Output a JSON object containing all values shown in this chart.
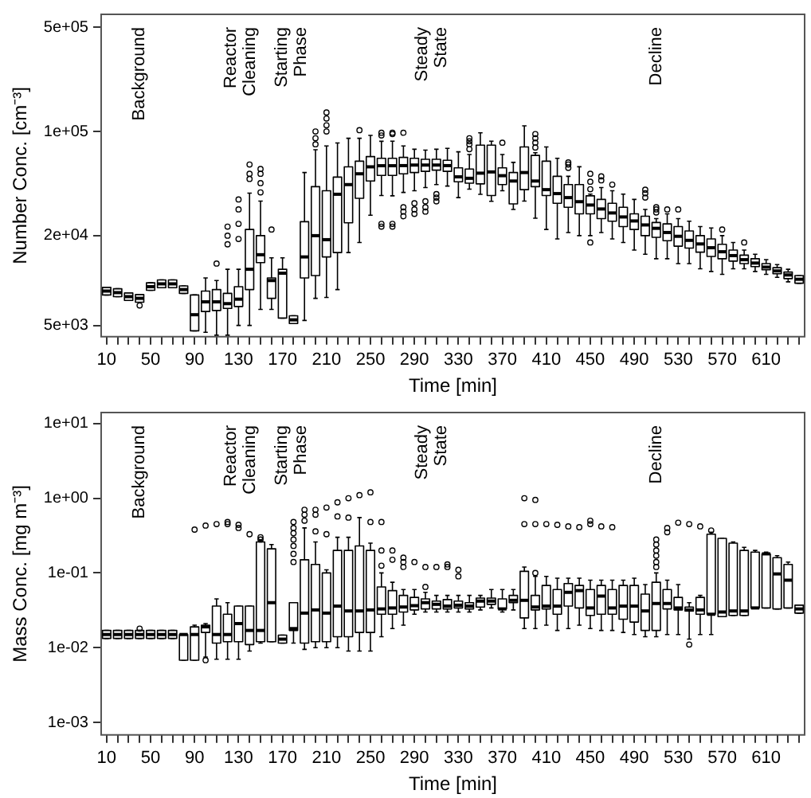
{
  "chart_data": [
    {
      "type": "box",
      "xlabel": "Time [min]",
      "ylabel": "Number Conc. [cm⁻³]",
      "log": true,
      "ylim": [
        4200,
        610000
      ],
      "yticks": [
        {
          "value": 5000,
          "label": "5e+03"
        },
        {
          "value": 20000,
          "label": "2e+04"
        },
        {
          "value": 100000,
          "label": "1e+05"
        },
        {
          "value": 500000,
          "label": "5e+05"
        }
      ],
      "annotations": [
        "Background",
        "Reactor Cleaning",
        "Starting Phase",
        "Steady State",
        "Decline"
      ],
      "categories": [
        "10",
        null,
        null,
        null,
        "50",
        null,
        null,
        null,
        "90",
        null,
        null,
        null,
        "130",
        null,
        null,
        null,
        "170",
        null,
        null,
        null,
        "210",
        null,
        null,
        null,
        "250",
        null,
        null,
        null,
        "290",
        null,
        null,
        null,
        "330",
        null,
        null,
        null,
        "370",
        null,
        null,
        null,
        "410",
        null,
        null,
        null,
        "450",
        null,
        null,
        null,
        "490",
        null,
        null,
        null,
        "530",
        null,
        null,
        null,
        "570",
        null,
        null,
        null,
        "610",
        null,
        null,
        null
      ],
      "boxes": [
        {
          "low": 8000,
          "q1": 8000,
          "median": 8500,
          "q3": 9000,
          "high": 9000
        },
        {
          "low": 7800,
          "q1": 7800,
          "median": 8300,
          "q3": 8800,
          "high": 8800
        },
        {
          "low": 7350,
          "q1": 7350,
          "median": 7800,
          "q3": 8250,
          "high": 8250
        },
        {
          "low": 7150,
          "q1": 7150,
          "median": 7600,
          "q3": 8050,
          "high": 8050,
          "outliers": [
            6800
          ]
        },
        {
          "low": 8600,
          "q1": 8600,
          "median": 9100,
          "q3": 9650,
          "high": 9650
        },
        {
          "low": 8950,
          "q1": 8950,
          "median": 9500,
          "q3": 10100,
          "high": 10100
        },
        {
          "low": 8950,
          "q1": 8950,
          "median": 9500,
          "q3": 10100,
          "high": 10100
        },
        {
          "low": 8200,
          "q1": 8200,
          "median": 8700,
          "q3": 9200,
          "high": 9200
        },
        {
          "low": 4600,
          "q1": 4600,
          "median": 5900,
          "q3": 8000,
          "high": 8000
        },
        {
          "low": 4500,
          "q1": 6200,
          "median": 7200,
          "q3": 8500,
          "high": 10400
        },
        {
          "low": 4300,
          "q1": 6300,
          "median": 7200,
          "q3": 8700,
          "high": 10000,
          "outliers": [
            13000
          ]
        },
        {
          "low": 4300,
          "q1": 6500,
          "median": 7000,
          "q3": 8200,
          "high": 11900,
          "outliers": [
            17500,
            20000,
            23000
          ]
        },
        {
          "low": 5000,
          "q1": 6700,
          "median": 7500,
          "q3": 9100,
          "high": 11900,
          "outliers": [
            19000,
            24000,
            30000,
            35000
          ]
        },
        {
          "low": 5000,
          "q1": 8700,
          "median": 11900,
          "q3": 22000,
          "high": 38600,
          "outliers": [
            48000,
            52000,
            60000
          ]
        },
        {
          "low": 6400,
          "q1": 13200,
          "median": 14900,
          "q3": 20000,
          "high": 34100,
          "outliers": [
            39000,
            45000,
            52000,
            56000
          ]
        },
        {
          "low": 6400,
          "q1": 7600,
          "median": 10000,
          "q3": 10400,
          "high": 14200,
          "outliers": [
            22000
          ]
        },
        {
          "low": 5600,
          "q1": 5600,
          "median": 11200,
          "q3": 11900,
          "high": 14200
        },
        {
          "low": 5150,
          "q1": 5150,
          "median": 5450,
          "q3": 5800,
          "high": 5800
        },
        {
          "low": 5400,
          "q1": 10400,
          "median": 14400,
          "q3": 24800,
          "high": 53000
        },
        {
          "low": 7600,
          "q1": 10800,
          "median": 20000,
          "q3": 42600,
          "high": 75400,
          "outliers": [
            82000,
            90000,
            100000
          ]
        },
        {
          "low": 7700,
          "q1": 14400,
          "median": 18800,
          "q3": 40000,
          "high": 80000,
          "outliers": [
            100000,
            110000,
            122000,
            134000
          ]
        },
        {
          "low": 8700,
          "q1": 15400,
          "median": 37900,
          "q3": 49400,
          "high": 83700
        },
        {
          "low": 15400,
          "q1": 24400,
          "median": 44000,
          "q3": 57900,
          "high": 90000
        },
        {
          "low": 18000,
          "q1": 35600,
          "median": 52000,
          "q3": 63200,
          "high": 90000,
          "outliers": [
            102000
          ]
        },
        {
          "low": 27400,
          "q1": 46500,
          "median": 57900,
          "q3": 67800,
          "high": 94000
        },
        {
          "low": 37200,
          "q1": 50700,
          "median": 58900,
          "q3": 66100,
          "high": 85900,
          "outliers": [
            23000,
            24000,
            94000,
            98000
          ]
        },
        {
          "low": 37000,
          "q1": 50700,
          "median": 58900,
          "q3": 66100,
          "high": 86000,
          "outliers": [
            23000,
            24000,
            96000,
            98000
          ]
        },
        {
          "low": 39000,
          "q1": 52000,
          "median": 59000,
          "q3": 67000,
          "high": 80000,
          "outliers": [
            27000,
            29000,
            31000,
            98000
          ]
        },
        {
          "low": 40000,
          "q1": 53000,
          "median": 59500,
          "q3": 66000,
          "high": 76000,
          "outliers": [
            28000,
            30000,
            33000
          ]
        },
        {
          "low": 42000,
          "q1": 54000,
          "median": 59500,
          "q3": 65000,
          "high": 75000,
          "outliers": [
            29000,
            31000,
            34000
          ]
        },
        {
          "low": 44000,
          "q1": 55000,
          "median": 59500,
          "q3": 65000,
          "high": 76000,
          "outliers": [
            34000,
            36000,
            38000
          ]
        },
        {
          "low": 43000,
          "q1": 54000,
          "median": 59000,
          "q3": 64000,
          "high": 77000
        },
        {
          "low": 36000,
          "q1": 46000,
          "median": 49600,
          "q3": 57000,
          "high": 73000
        },
        {
          "low": 41000,
          "q1": 45000,
          "median": 48500,
          "q3": 56000,
          "high": 70000,
          "outliers": [
            76000,
            82000,
            86000,
            90000
          ]
        },
        {
          "low": 37900,
          "q1": 44500,
          "median": 52500,
          "q3": 80900,
          "high": 98000
        },
        {
          "low": 34000,
          "q1": 37200,
          "median": 53500,
          "q3": 80900,
          "high": 86000
        },
        {
          "low": 40000,
          "q1": 44000,
          "median": 50500,
          "q3": 57000,
          "high": 70000,
          "outliers": [
            84000
          ]
        },
        {
          "low": 30000,
          "q1": 32700,
          "median": 46500,
          "q3": 53000,
          "high": 62000
        },
        {
          "low": 34100,
          "q1": 40700,
          "median": 53000,
          "q3": 78700,
          "high": 109000
        },
        {
          "low": 26200,
          "q1": 42600,
          "median": 46500,
          "q3": 69100,
          "high": 72000,
          "outliers": [
            78000,
            84000,
            90000,
            96000
          ]
        },
        {
          "low": 22000,
          "q1": 37200,
          "median": 40700,
          "q3": 63200,
          "high": 78700
        },
        {
          "low": 19000,
          "q1": 33000,
          "median": 38300,
          "q3": 50000,
          "high": 66000
        },
        {
          "low": 21000,
          "q1": 31000,
          "median": 36000,
          "q3": 44000,
          "high": 50000,
          "outliers": [
            57000,
            60000,
            62000
          ]
        },
        {
          "low": 20000,
          "q1": 28000,
          "median": 33800,
          "q3": 44000,
          "high": 58000
        },
        {
          "low": 20000,
          "q1": 28000,
          "median": 32100,
          "q3": 37000,
          "high": 38000,
          "outliers": [
            18000,
            41000,
            46000,
            52000
          ]
        },
        {
          "low": 21000,
          "q1": 26000,
          "median": 30200,
          "q3": 35000,
          "high": 42000,
          "outliers": [
            47000,
            50000
          ]
        },
        {
          "low": 19000,
          "q1": 25000,
          "median": 28400,
          "q3": 33000,
          "high": 40000,
          "outliers": [
            44000
          ]
        },
        {
          "low": 18000,
          "q1": 23000,
          "median": 26700,
          "q3": 31000,
          "high": 38000
        },
        {
          "low": 16000,
          "q1": 22000,
          "median": 25100,
          "q3": 28000,
          "high": 35000
        },
        {
          "low": 15000,
          "q1": 20000,
          "median": 23600,
          "q3": 27000,
          "high": 30000,
          "outliers": [
            36000,
            38500,
            40700
          ]
        },
        {
          "low": 14000,
          "q1": 19500,
          "median": 22400,
          "q3": 24500,
          "high": 26000,
          "outliers": [
            28600,
            30000,
            31000
          ]
        },
        {
          "low": 14000,
          "q1": 18500,
          "median": 21000,
          "q3": 24000,
          "high": 28000,
          "outliers": [
            30000
          ]
        },
        {
          "low": 13000,
          "q1": 17000,
          "median": 19800,
          "q3": 23000,
          "high": 26000,
          "outliers": [
            30000
          ]
        },
        {
          "low": 13000,
          "q1": 16500,
          "median": 18600,
          "q3": 21500,
          "high": 25000
        },
        {
          "low": 12000,
          "q1": 15500,
          "median": 17600,
          "q3": 20000,
          "high": 23000
        },
        {
          "low": 11500,
          "q1": 14500,
          "median": 16600,
          "q3": 19000,
          "high": 22500
        },
        {
          "low": 11000,
          "q1": 14000,
          "median": 15600,
          "q3": 17500,
          "high": 20000,
          "outliers": [
            22000
          ]
        },
        {
          "low": 12000,
          "q1": 13500,
          "median": 14700,
          "q3": 16000,
          "high": 18000
        },
        {
          "low": 12000,
          "q1": 13000,
          "median": 13800,
          "q3": 14800,
          "high": 16000,
          "outliers": [
            18000
          ]
        },
        {
          "low": 11500,
          "q1": 12400,
          "median": 13100,
          "q3": 14000,
          "high": 15000
        },
        {
          "low": 11000,
          "q1": 11800,
          "median": 12300,
          "q3": 13000,
          "high": 13800
        },
        {
          "low": 10500,
          "q1": 11100,
          "median": 11600,
          "q3": 12200,
          "high": 12800
        },
        {
          "low": 9800,
          "q1": 10300,
          "median": 10900,
          "q3": 11400,
          "high": 11900
        },
        {
          "low": 9600,
          "q1": 9600,
          "median": 10200,
          "q3": 10800,
          "high": 10800
        }
      ]
    },
    {
      "type": "box",
      "xlabel": "Time [min]",
      "ylabel": "Mass Conc. [mg m⁻³]",
      "log": true,
      "ylim": [
        0.00068,
        14
      ],
      "yticks": [
        {
          "value": 0.001,
          "label": "1e-03"
        },
        {
          "value": 0.01,
          "label": "1e-02"
        },
        {
          "value": 0.1,
          "label": "1e-01"
        },
        {
          "value": 1,
          "label": "1e+00"
        },
        {
          "value": 10,
          "label": "1e+01"
        }
      ],
      "annotations": [
        "Background",
        "Reactor Cleaning",
        "Starting Phase",
        "Steady State",
        "Decline"
      ],
      "categories": [
        "10",
        null,
        null,
        null,
        "50",
        null,
        null,
        null,
        "90",
        null,
        null,
        null,
        "130",
        null,
        null,
        null,
        "170",
        null,
        null,
        null,
        "210",
        null,
        null,
        null,
        "250",
        null,
        null,
        null,
        "290",
        null,
        null,
        null,
        "330",
        null,
        null,
        null,
        "370",
        null,
        null,
        null,
        "410",
        null,
        null,
        null,
        "450",
        null,
        null,
        null,
        "490",
        null,
        null,
        null,
        "530",
        null,
        null,
        null,
        "570",
        null,
        null,
        null,
        "610",
        null,
        null,
        null
      ],
      "boxes": [
        {
          "low": 0.0133,
          "q1": 0.0133,
          "median": 0.015,
          "q3": 0.017,
          "high": 0.017
        },
        {
          "low": 0.0133,
          "q1": 0.0133,
          "median": 0.015,
          "q3": 0.017,
          "high": 0.017
        },
        {
          "low": 0.0133,
          "q1": 0.0133,
          "median": 0.015,
          "q3": 0.017,
          "high": 0.017
        },
        {
          "low": 0.0133,
          "q1": 0.0133,
          "median": 0.015,
          "q3": 0.017,
          "high": 0.017,
          "outliers": [
            0.018
          ]
        },
        {
          "low": 0.0133,
          "q1": 0.0133,
          "median": 0.015,
          "q3": 0.017,
          "high": 0.017
        },
        {
          "low": 0.0133,
          "q1": 0.0133,
          "median": 0.015,
          "q3": 0.017,
          "high": 0.017
        },
        {
          "low": 0.0133,
          "q1": 0.0133,
          "median": 0.015,
          "q3": 0.017,
          "high": 0.017
        },
        {
          "low": 0.0068,
          "q1": 0.0068,
          "median": 0.015,
          "q3": 0.015,
          "high": 0.015
        },
        {
          "low": 0.0068,
          "q1": 0.0068,
          "median": 0.015,
          "q3": 0.019,
          "high": 0.02,
          "outliers": [
            0.38
          ]
        },
        {
          "low": 0.0075,
          "q1": 0.016,
          "median": 0.019,
          "q3": 0.02,
          "high": 0.021,
          "outliers": [
            0.0068,
            0.43
          ]
        },
        {
          "low": 0.007,
          "q1": 0.0115,
          "median": 0.015,
          "q3": 0.036,
          "high": 0.045,
          "outliers": [
            0.45
          ]
        },
        {
          "low": 0.007,
          "q1": 0.012,
          "median": 0.015,
          "q3": 0.028,
          "high": 0.04,
          "outliers": [
            0.45,
            0.48
          ]
        },
        {
          "low": 0.007,
          "q1": 0.012,
          "median": 0.021,
          "q3": 0.036,
          "high": 0.036,
          "outliers": [
            0.4,
            0.44
          ]
        },
        {
          "low": 0.009,
          "q1": 0.011,
          "median": 0.017,
          "q3": 0.036,
          "high": 0.036,
          "outliers": [
            0.33
          ]
        },
        {
          "low": 0.0115,
          "q1": 0.012,
          "median": 0.017,
          "q3": 0.26,
          "high": 0.27,
          "outliers": [
            0.28,
            0.3
          ]
        },
        {
          "low": 0.012,
          "q1": 0.012,
          "median": 0.04,
          "q3": 0.21,
          "high": 0.24
        },
        {
          "low": 0.0115,
          "q1": 0.0115,
          "median": 0.013,
          "q3": 0.0147,
          "high": 0.0147
        },
        {
          "low": 0.0115,
          "q1": 0.017,
          "median": 0.018,
          "q3": 0.04,
          "high": 0.04,
          "outliers": [
            0.14,
            0.18,
            0.23,
            0.28,
            0.34,
            0.4,
            0.48
          ]
        },
        {
          "low": 0.0095,
          "q1": 0.0115,
          "median": 0.029,
          "q3": 0.15,
          "high": 0.4,
          "outliers": [
            0.5,
            0.6,
            0.7
          ]
        },
        {
          "low": 0.01,
          "q1": 0.012,
          "median": 0.032,
          "q3": 0.13,
          "high": 0.26,
          "outliers": [
            0.36,
            0.6,
            0.7
          ]
        },
        {
          "low": 0.01,
          "q1": 0.012,
          "median": 0.029,
          "q3": 0.1,
          "high": 0.11,
          "outliers": [
            0.33,
            0.75
          ]
        },
        {
          "low": 0.01,
          "q1": 0.014,
          "median": 0.036,
          "q3": 0.2,
          "high": 0.3,
          "outliers": [
            0.57,
            0.88
          ]
        },
        {
          "low": 0.009,
          "q1": 0.014,
          "median": 0.031,
          "q3": 0.2,
          "high": 0.3,
          "outliers": [
            0.55,
            1.0
          ]
        },
        {
          "low": 0.009,
          "q1": 0.016,
          "median": 0.031,
          "q3": 0.23,
          "high": 0.55,
          "outliers": [
            1.1
          ]
        },
        {
          "low": 0.009,
          "q1": 0.016,
          "median": 0.032,
          "q3": 0.2,
          "high": 0.25,
          "outliers": [
            0.48,
            1.2
          ]
        },
        {
          "low": 0.014,
          "q1": 0.028,
          "median": 0.033,
          "q3": 0.065,
          "high": 0.1,
          "outliers": [
            0.125,
            0.2,
            0.48
          ]
        },
        {
          "low": 0.018,
          "q1": 0.028,
          "median": 0.034,
          "q3": 0.058,
          "high": 0.075,
          "outliers": [
            0.15,
            0.2
          ]
        },
        {
          "low": 0.02,
          "q1": 0.03,
          "median": 0.035,
          "q3": 0.05,
          "high": 0.06,
          "outliers": [
            0.12,
            0.14,
            0.16
          ]
        },
        {
          "low": 0.028,
          "q1": 0.032,
          "median": 0.0365,
          "q3": 0.047,
          "high": 0.06,
          "outliers": [
            0.14
          ]
        },
        {
          "low": 0.03,
          "q1": 0.033,
          "median": 0.04,
          "q3": 0.045,
          "high": 0.055,
          "outliers": [
            0.065,
            0.12
          ]
        },
        {
          "low": 0.03,
          "q1": 0.033,
          "median": 0.038,
          "q3": 0.042,
          "high": 0.05,
          "outliers": [
            0.12
          ]
        },
        {
          "low": 0.03,
          "q1": 0.033,
          "median": 0.036,
          "q3": 0.044,
          "high": 0.05,
          "outliers": [
            0.12,
            0.13
          ]
        },
        {
          "low": 0.03,
          "q1": 0.034,
          "median": 0.037,
          "q3": 0.042,
          "high": 0.05,
          "outliers": [
            0.09,
            0.11
          ]
        },
        {
          "low": 0.03,
          "q1": 0.033,
          "median": 0.036,
          "q3": 0.04,
          "high": 0.05
        },
        {
          "low": 0.032,
          "q1": 0.035,
          "median": 0.042,
          "q3": 0.046,
          "high": 0.05
        },
        {
          "low": 0.034,
          "q1": 0.038,
          "median": 0.042,
          "q3": 0.046,
          "high": 0.06
        },
        {
          "low": 0.03,
          "q1": 0.033,
          "median": 0.033,
          "q3": 0.045,
          "high": 0.06
        },
        {
          "low": 0.032,
          "q1": 0.04,
          "median": 0.043,
          "q3": 0.05,
          "high": 0.06
        },
        {
          "low": 0.018,
          "q1": 0.025,
          "median": 0.043,
          "q3": 0.105,
          "high": 0.12,
          "outliers": [
            0.45,
            1.0
          ]
        },
        {
          "low": 0.018,
          "q1": 0.032,
          "median": 0.035,
          "q3": 0.05,
          "high": 0.09,
          "outliers": [
            0.1,
            0.45,
            0.95
          ]
        },
        {
          "low": 0.02,
          "q1": 0.033,
          "median": 0.036,
          "q3": 0.068,
          "high": 0.09,
          "outliers": [
            0.45
          ]
        },
        {
          "low": 0.017,
          "q1": 0.028,
          "median": 0.036,
          "q3": 0.06,
          "high": 0.085,
          "outliers": [
            0.44
          ]
        },
        {
          "low": 0.018,
          "q1": 0.036,
          "median": 0.055,
          "q3": 0.072,
          "high": 0.085,
          "outliers": [
            0.42
          ]
        },
        {
          "low": 0.02,
          "q1": 0.034,
          "median": 0.058,
          "q3": 0.068,
          "high": 0.085,
          "outliers": [
            0.41
          ]
        },
        {
          "low": 0.018,
          "q1": 0.027,
          "median": 0.034,
          "q3": 0.06,
          "high": 0.08,
          "outliers": [
            0.45,
            0.5
          ]
        },
        {
          "low": 0.017,
          "q1": 0.028,
          "median": 0.049,
          "q3": 0.068,
          "high": 0.08,
          "outliers": [
            0.42
          ]
        },
        {
          "low": 0.017,
          "q1": 0.028,
          "median": 0.034,
          "q3": 0.06,
          "high": 0.08,
          "outliers": [
            0.41
          ]
        },
        {
          "low": 0.016,
          "q1": 0.024,
          "median": 0.036,
          "q3": 0.068,
          "high": 0.08
        },
        {
          "low": 0.015,
          "q1": 0.022,
          "median": 0.036,
          "q3": 0.068,
          "high": 0.085
        },
        {
          "low": 0.014,
          "q1": 0.017,
          "median": 0.031,
          "q3": 0.052,
          "high": 0.07
        },
        {
          "low": 0.014,
          "q1": 0.017,
          "median": 0.039,
          "q3": 0.075,
          "high": 0.1,
          "outliers": [
            0.12,
            0.14,
            0.17,
            0.2,
            0.24,
            0.28
          ]
        },
        {
          "low": 0.015,
          "q1": 0.033,
          "median": 0.039,
          "q3": 0.06,
          "high": 0.08,
          "outliers": [
            0.35,
            0.4
          ]
        },
        {
          "low": 0.015,
          "q1": 0.032,
          "median": 0.034,
          "q3": 0.047,
          "high": 0.07,
          "outliers": [
            0.47
          ]
        },
        {
          "low": 0.013,
          "q1": 0.031,
          "median": 0.032,
          "q3": 0.035,
          "high": 0.04,
          "outliers": [
            0.011,
            0.45
          ]
        },
        {
          "low": 0.015,
          "q1": 0.028,
          "median": 0.032,
          "q3": 0.047,
          "high": 0.05,
          "outliers": [
            0.42
          ]
        },
        {
          "low": 0.015,
          "q1": 0.028,
          "median": 0.028,
          "q3": 0.33,
          "high": 0.35,
          "outliers": [
            0.37
          ]
        },
        {
          "low": 0.026,
          "q1": 0.026,
          "median": 0.03,
          "q3": 0.29,
          "high": 0.29
        },
        {
          "low": 0.027,
          "q1": 0.027,
          "median": 0.031,
          "q3": 0.25,
          "high": 0.26
        },
        {
          "low": 0.027,
          "q1": 0.027,
          "median": 0.031,
          "q3": 0.2,
          "high": 0.22
        },
        {
          "low": 0.034,
          "q1": 0.034,
          "median": 0.034,
          "q3": 0.19,
          "high": 0.2
        },
        {
          "low": 0.034,
          "q1": 0.034,
          "median": 0.18,
          "q3": 0.18,
          "high": 0.19
        },
        {
          "low": 0.033,
          "q1": 0.033,
          "median": 0.097,
          "q3": 0.16,
          "high": 0.17
        },
        {
          "low": 0.034,
          "q1": 0.034,
          "median": 0.08,
          "q3": 0.13,
          "high": 0.14
        },
        {
          "low": 0.029,
          "q1": 0.029,
          "median": 0.033,
          "q3": 0.037,
          "high": 0.037
        }
      ]
    }
  ]
}
